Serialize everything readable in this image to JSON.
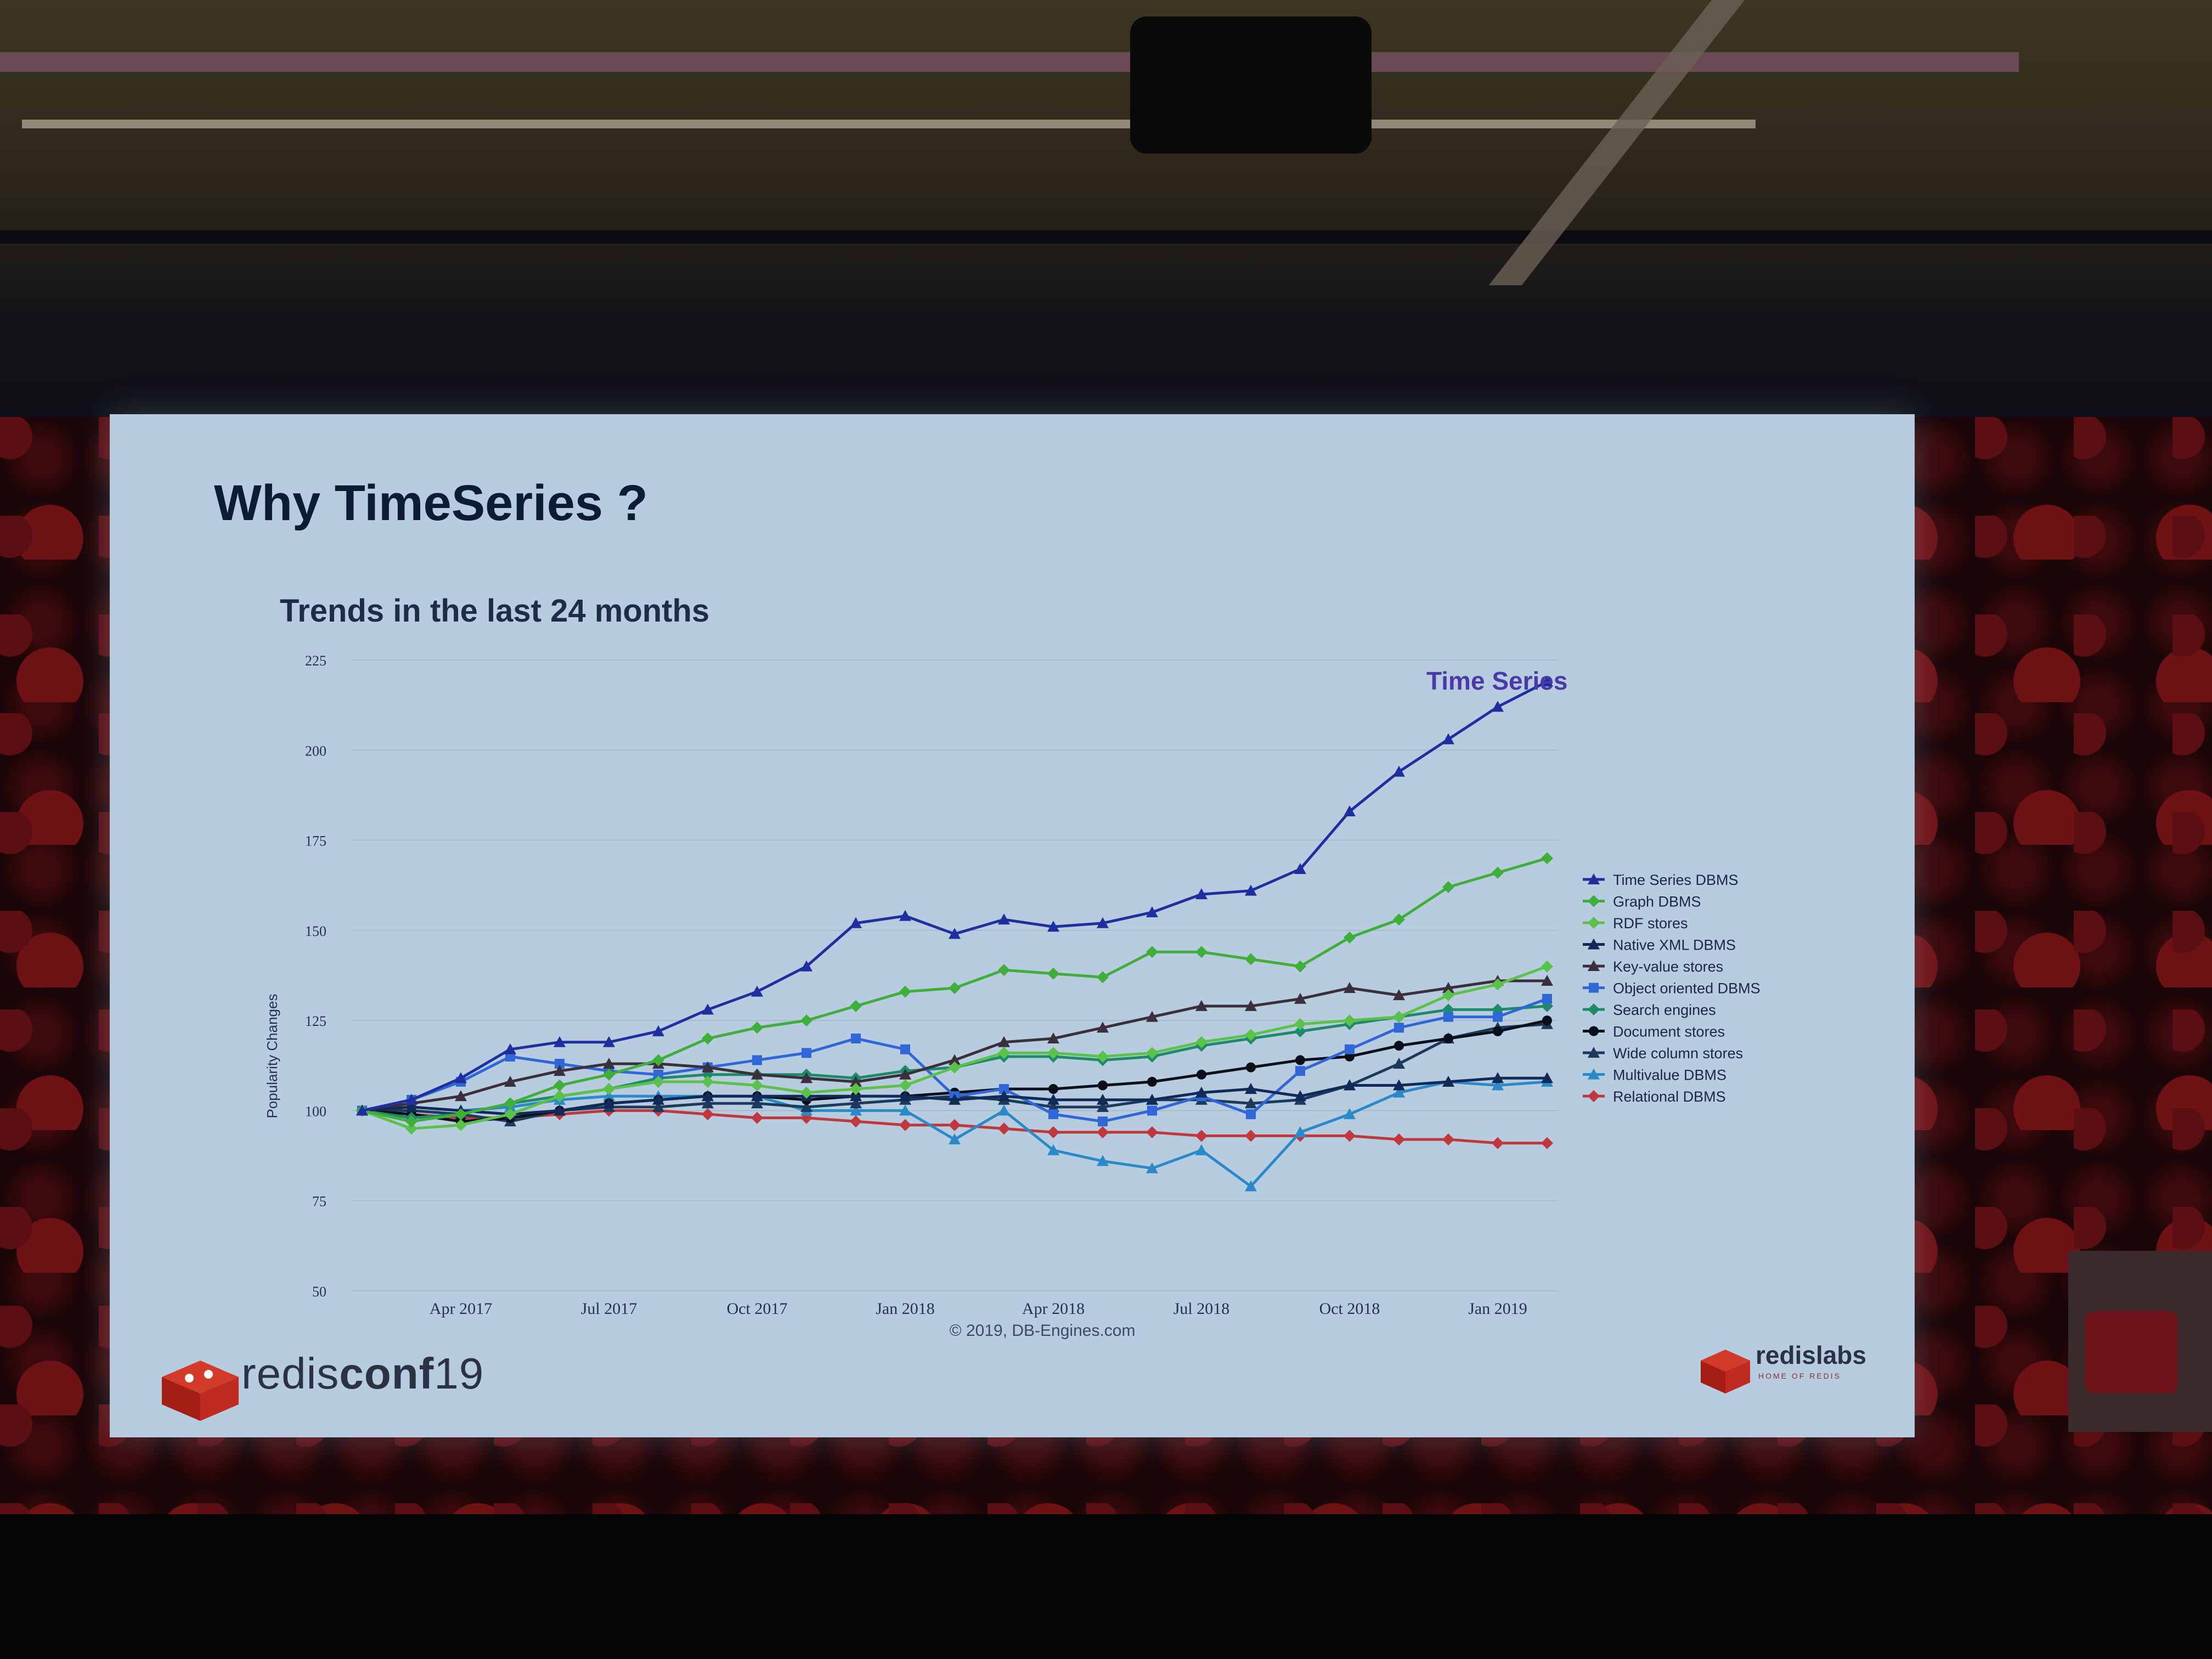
{
  "slide": {
    "title": "Why TimeSeries ?",
    "conference": {
      "prefix": "redis",
      "suffix": "conf",
      "year": "19"
    },
    "brand": {
      "name": "redislabs",
      "tagline": "HOME OF REDIS"
    }
  },
  "colors": {
    "time_series": "#1f2fa0",
    "graph": "#3fae3a",
    "rdf": "#5ac24a",
    "native_xml": "#122a58",
    "key_value": "#3a2f3a",
    "object_oriented": "#2f66d8",
    "search": "#1e8a68",
    "document": "#0a0f1a",
    "wide_column": "#1c3a5c",
    "multivalue": "#2a8ac8",
    "relational": "#c0383c",
    "brand_red": "#b5221e"
  },
  "chart_data": {
    "type": "line",
    "title": "Trends in the last 24 months",
    "ylabel": "Popularity Changes",
    "xlabel": "",
    "ylim": [
      50,
      225
    ],
    "yticks": [
      50,
      75,
      100,
      125,
      150,
      175,
      200,
      225
    ],
    "x": [
      0,
      1,
      2,
      3,
      4,
      5,
      6,
      7,
      8,
      9,
      10,
      11,
      12,
      13,
      14,
      15,
      16,
      17,
      18,
      19,
      20,
      21,
      22,
      23,
      24
    ],
    "xtick_labels": [
      "Apr 2017",
      "Jul 2017",
      "Oct 2017",
      "Jan 2018",
      "Apr 2018",
      "Jul 2018",
      "Oct 2018",
      "Jan 2019"
    ],
    "xtick_positions": [
      2,
      5,
      8,
      11,
      14,
      17,
      20,
      23
    ],
    "credit": "© 2019, DB-Engines.com",
    "annotation": "Time Series",
    "legend_position": "right",
    "series": [
      {
        "name": "Time Series DBMS",
        "color_key": "time_series",
        "marker": "triangle",
        "values": [
          100,
          103,
          109,
          117,
          119,
          119,
          122,
          128,
          133,
          140,
          152,
          154,
          149,
          153,
          151,
          152,
          155,
          160,
          161,
          167,
          183,
          194,
          203,
          212,
          219
        ]
      },
      {
        "name": "Graph DBMS",
        "color_key": "graph",
        "marker": "diamond",
        "values": [
          100,
          97,
          99,
          102,
          107,
          110,
          114,
          120,
          123,
          125,
          129,
          133,
          134,
          139,
          138,
          137,
          144,
          144,
          142,
          140,
          148,
          153,
          162,
          166,
          170
        ]
      },
      {
        "name": "RDF stores",
        "color_key": "rdf",
        "marker": "diamond",
        "values": [
          100,
          95,
          96,
          99,
          104,
          106,
          108,
          108,
          107,
          105,
          106,
          107,
          112,
          116,
          116,
          115,
          116,
          119,
          121,
          124,
          125,
          126,
          132,
          135,
          140
        ]
      },
      {
        "name": "Native XML DBMS",
        "color_key": "native_xml",
        "marker": "triangle",
        "values": [
          100,
          101,
          100,
          99,
          100,
          102,
          103,
          104,
          104,
          104,
          104,
          104,
          103,
          104,
          103,
          103,
          103,
          105,
          106,
          104,
          107,
          107,
          108,
          109,
          109
        ]
      },
      {
        "name": "Key-value stores",
        "color_key": "key_value",
        "marker": "triangle",
        "values": [
          100,
          102,
          104,
          108,
          111,
          113,
          113,
          112,
          110,
          109,
          108,
          110,
          114,
          119,
          120,
          123,
          126,
          129,
          129,
          131,
          134,
          132,
          134,
          136,
          136
        ]
      },
      {
        "name": "Object oriented DBMS",
        "color_key": "object_oriented",
        "marker": "square",
        "values": [
          100,
          103,
          108,
          115,
          113,
          111,
          110,
          112,
          114,
          116,
          120,
          117,
          104,
          106,
          99,
          97,
          100,
          104,
          99,
          111,
          117,
          123,
          126,
          126,
          131
        ]
      },
      {
        "name": "Search engines",
        "color_key": "search",
        "marker": "diamond",
        "values": [
          100,
          98,
          99,
          102,
          104,
          106,
          109,
          110,
          110,
          110,
          109,
          111,
          112,
          115,
          115,
          114,
          115,
          118,
          120,
          122,
          124,
          126,
          128,
          128,
          129
        ]
      },
      {
        "name": "Document stores",
        "color_key": "document",
        "marker": "circle",
        "values": [
          100,
          99,
          97,
          98,
          100,
          102,
          103,
          104,
          104,
          103,
          104,
          104,
          105,
          106,
          106,
          107,
          108,
          110,
          112,
          114,
          115,
          118,
          120,
          122,
          125
        ]
      },
      {
        "name": "Wide column stores",
        "color_key": "wide_column",
        "marker": "triangle",
        "values": [
          100,
          100,
          99,
          97,
          100,
          101,
          101,
          102,
          102,
          101,
          102,
          103,
          104,
          103,
          101,
          101,
          103,
          103,
          102,
          103,
          107,
          113,
          120,
          123,
          124
        ]
      },
      {
        "name": "Multivalue DBMS",
        "color_key": "multivalue",
        "marker": "triangle",
        "values": [
          100,
          101,
          100,
          101,
          103,
          104,
          104,
          104,
          104,
          100,
          100,
          100,
          92,
          100,
          89,
          86,
          84,
          89,
          79,
          94,
          99,
          105,
          108,
          107,
          108
        ]
      },
      {
        "name": "Relational DBMS",
        "color_key": "relational",
        "marker": "diamond",
        "values": [
          100,
          99,
          98,
          98,
          99,
          100,
          100,
          99,
          98,
          98,
          97,
          96,
          96,
          95,
          94,
          94,
          94,
          93,
          93,
          93,
          93,
          92,
          92,
          91,
          91
        ]
      }
    ]
  }
}
